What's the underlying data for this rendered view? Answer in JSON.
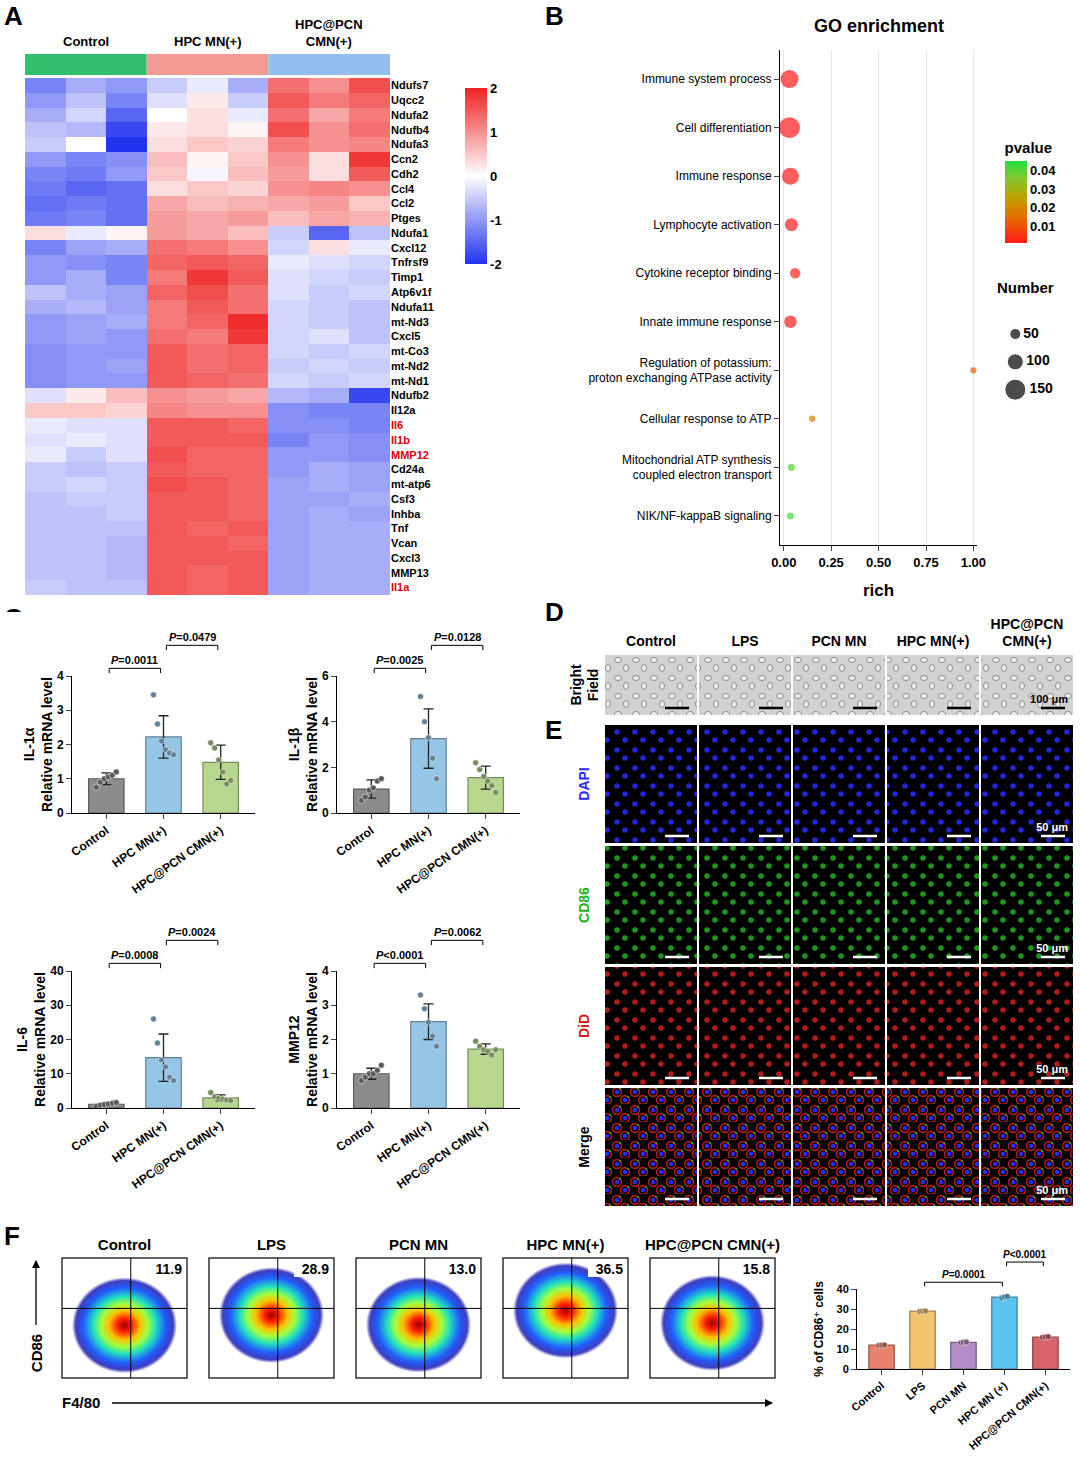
{
  "chart_data": [
    {
      "panel": "A",
      "type": "heatmap",
      "groups": [
        {
          "name": "Control",
          "color": "#2fbf6e"
        },
        {
          "name": "HPC MN(+)",
          "color": "#f29b94"
        },
        {
          "name": "HPC@PCN CMN(+)",
          "color": "#93bff0"
        }
      ],
      "replicates": 3,
      "rows": [
        "Ndufs7",
        "Uqcc2",
        "Ndufa2",
        "Ndufb4",
        "Ndufa3",
        "Ccn2",
        "Cdh2",
        "Ccl4",
        "Ccl2",
        "Ptges",
        "Ndufa1",
        "Cxcl12",
        "Tnfrsf9",
        "Timp1",
        "Atp6v1f",
        "Ndufa11",
        "mt-Nd3",
        "Cxcl5",
        "mt-Co3",
        "mt-Nd2",
        "mt-Nd1",
        "Ndufb2",
        "Il12a",
        "Il6",
        "Il1b",
        "MMP12",
        "Cd24a",
        "mt-atp6",
        "Csf3",
        "Inhba",
        "Tnf",
        "Vcan",
        "Cxcl3",
        "MMP13",
        "Il1a"
      ],
      "highlighted_rows": [
        "Il6",
        "Il1b",
        "MMP12",
        "Il1a"
      ],
      "values": [
        [
          -1.2,
          -0.8,
          -1.0,
          -0.5,
          -0.2,
          -0.8,
          1.3,
          1.0,
          1.6
        ],
        [
          -1.0,
          -0.6,
          -1.2,
          -0.3,
          0.2,
          -0.5,
          1.5,
          1.2,
          1.4
        ],
        [
          -0.8,
          -0.4,
          -1.5,
          0.0,
          0.3,
          -0.2,
          1.3,
          0.8,
          1.2
        ],
        [
          -0.6,
          -0.7,
          -1.8,
          0.2,
          0.3,
          0.1,
          1.6,
          1.0,
          1.3
        ],
        [
          -0.5,
          0.0,
          -2.0,
          0.3,
          0.5,
          0.4,
          1.2,
          1.0,
          1.1
        ],
        [
          -1.0,
          -1.2,
          -1.1,
          0.6,
          0.1,
          0.5,
          1.0,
          0.3,
          1.8
        ],
        [
          -1.2,
          -1.3,
          -1.0,
          0.5,
          -0.1,
          0.6,
          0.9,
          0.3,
          1.5
        ],
        [
          -1.3,
          -1.5,
          -1.4,
          0.3,
          0.5,
          0.4,
          1.0,
          1.1,
          1.0
        ],
        [
          -1.4,
          -1.3,
          -1.4,
          0.8,
          0.6,
          0.7,
          0.8,
          0.9,
          0.5
        ],
        [
          -1.3,
          -1.2,
          -1.4,
          0.9,
          0.8,
          0.9,
          0.6,
          0.8,
          0.7
        ],
        [
          0.3,
          -0.2,
          0.1,
          0.9,
          0.8,
          0.6,
          -0.5,
          -1.5,
          -0.6
        ],
        [
          -1.2,
          -0.9,
          -0.8,
          1.3,
          1.2,
          1.0,
          -0.4,
          0.3,
          -0.2
        ],
        [
          -1.0,
          -1.1,
          -1.2,
          1.4,
          1.5,
          1.4,
          -0.2,
          -0.3,
          -0.4
        ],
        [
          -1.0,
          -0.8,
          -1.2,
          1.2,
          1.8,
          1.5,
          -0.3,
          -0.4,
          -0.5
        ],
        [
          -0.6,
          -0.8,
          -0.9,
          1.4,
          1.6,
          1.3,
          -0.3,
          -0.5,
          -0.4
        ],
        [
          -0.8,
          -0.7,
          -0.9,
          1.2,
          1.5,
          1.3,
          -0.4,
          -0.5,
          -0.6
        ],
        [
          -1.0,
          -0.9,
          -0.8,
          1.2,
          1.4,
          1.9,
          -0.4,
          -0.5,
          -0.6
        ],
        [
          -1.0,
          -0.9,
          -1.0,
          1.3,
          1.2,
          1.8,
          -0.4,
          -0.3,
          -0.6
        ],
        [
          -1.1,
          -1.0,
          -1.0,
          1.5,
          1.3,
          1.4,
          -0.4,
          -0.5,
          -0.4
        ],
        [
          -1.1,
          -1.0,
          -0.9,
          1.5,
          1.3,
          1.4,
          -0.5,
          -0.4,
          -0.5
        ],
        [
          -1.1,
          -1.0,
          -1.0,
          1.5,
          1.4,
          1.3,
          -0.4,
          -0.5,
          -0.4
        ],
        [
          -0.3,
          0.2,
          0.6,
          1.0,
          0.9,
          0.8,
          -0.7,
          -0.8,
          -1.8
        ],
        [
          0.5,
          0.5,
          0.4,
          1.1,
          1.0,
          1.0,
          -1.1,
          -1.2,
          -1.2
        ],
        [
          -0.2,
          -0.3,
          -0.3,
          1.5,
          1.5,
          1.4,
          -1.1,
          -1.1,
          -1.2
        ],
        [
          -0.3,
          -0.2,
          -0.3,
          1.5,
          1.5,
          1.5,
          -1.2,
          -1.0,
          -1.1
        ],
        [
          -0.2,
          -0.5,
          -0.3,
          1.6,
          1.4,
          1.4,
          -1.0,
          -1.0,
          -1.1
        ],
        [
          -0.5,
          -0.6,
          -0.5,
          1.5,
          1.4,
          1.4,
          -1.0,
          -0.8,
          -0.9
        ],
        [
          -0.5,
          -0.4,
          -0.5,
          1.6,
          1.5,
          1.4,
          -0.9,
          -0.8,
          -0.9
        ],
        [
          -0.6,
          -0.5,
          -0.5,
          1.5,
          1.5,
          1.4,
          -0.9,
          -0.9,
          -0.8
        ],
        [
          -0.6,
          -0.6,
          -0.5,
          1.5,
          1.5,
          1.4,
          -0.9,
          -0.8,
          -0.9
        ],
        [
          -0.6,
          -0.6,
          -0.6,
          1.5,
          1.4,
          1.5,
          -0.9,
          -0.8,
          -0.8
        ],
        [
          -0.6,
          -0.6,
          -0.7,
          1.5,
          1.5,
          1.4,
          -0.9,
          -0.8,
          -0.8
        ],
        [
          -0.6,
          -0.6,
          -0.7,
          1.5,
          1.5,
          1.5,
          -0.9,
          -0.8,
          -0.8
        ],
        [
          -0.6,
          -0.6,
          -0.7,
          1.5,
          1.4,
          1.5,
          -0.9,
          -0.8,
          -0.8
        ],
        [
          -0.5,
          -0.6,
          -0.6,
          1.5,
          1.4,
          1.5,
          -0.9,
          -0.8,
          -0.8
        ]
      ],
      "colorbar": {
        "range": [
          -2,
          2
        ],
        "ticks": [
          2,
          1,
          0,
          -1,
          -2
        ]
      }
    },
    {
      "panel": "B",
      "type": "scatter",
      "title": "GO enrichment",
      "xlabel": "rich",
      "categories": [
        "Immune system process",
        "Cell differentiation",
        "Immune response",
        "Lymphocyte activation",
        "Cytokine receptor binding",
        "Innate immune response",
        "Regulation of potassium: proton exchanging ATPase activity",
        "Cellular response to ATP",
        "Mitochondrial ATP synthesis coupled electron transport",
        "NIK/NF-kappaB signaling"
      ],
      "x": [
        0.03,
        0.03,
        0.035,
        0.04,
        0.06,
        0.035,
        1.0,
        0.15,
        0.04,
        0.035
      ],
      "pvalue": [
        0.0005,
        0.0008,
        0.0006,
        0.001,
        0.003,
        0.0015,
        0.012,
        0.018,
        0.04,
        0.042
      ],
      "size": [
        120,
        150,
        110,
        70,
        45,
        65,
        2,
        5,
        12,
        10
      ],
      "xlim": [
        -0.02,
        1.02
      ],
      "xticks": [
        {
          "value": 0,
          "label": "0.00"
        },
        {
          "value": 0.25,
          "label": "0.25"
        },
        {
          "value": 0.5,
          "label": "0.50"
        },
        {
          "value": 0.75,
          "label": "0.75"
        },
        {
          "value": 1,
          "label": "1.00"
        }
      ],
      "grid": true,
      "colorbar": {
        "title": "pvalue",
        "range": [
          0.001,
          0.045
        ],
        "ticks": [
          0.01,
          0.02,
          0.03,
          0.04
        ]
      },
      "size_legend": {
        "title": "Number",
        "values": [
          50,
          100,
          150
        ]
      }
    },
    {
      "panel": "C",
      "type": "bar",
      "title": "IL-1α",
      "ylabel": "Relative mRNA level",
      "categories": [
        "Control",
        "HPC MN(+)",
        "HPC@PCN CMN(+)"
      ],
      "values": [
        1.0,
        2.22,
        1.48
      ],
      "errors": [
        0.17,
        0.62,
        0.5
      ],
      "points": [
        [
          0.75,
          0.9,
          1.0,
          1.05,
          1.1,
          1.2
        ],
        [
          3.45,
          2.6,
          2.1,
          1.85,
          1.75,
          1.7
        ],
        [
          2.05,
          1.9,
          1.55,
          1.2,
          0.85,
          0.95
        ]
      ],
      "colors": [
        "#8c8c8c",
        "#96c6e6",
        "#b7d68e"
      ],
      "ylim": [
        0,
        4
      ],
      "yticks": [
        0,
        1,
        2,
        3,
        4
      ],
      "comparisons": [
        {
          "from": 0,
          "to": 1,
          "label": "P=0.0011"
        },
        {
          "from": 1,
          "to": 2,
          "label": "P=0.0479"
        }
      ]
    },
    {
      "type": "bar",
      "title": "IL-1β",
      "ylabel": "Relative mRNA level",
      "categories": [
        "Control",
        "HPC MN(+)",
        "HPC@PCN CMN(+)"
      ],
      "values": [
        1.05,
        3.26,
        1.55
      ],
      "errors": [
        0.4,
        1.3,
        0.5
      ],
      "points": [
        [
          0.55,
          0.7,
          1.0,
          1.1,
          1.4,
          1.5
        ],
        [
          5.1,
          4.0,
          3.3,
          2.4,
          1.5
        ],
        [
          2.2,
          1.9,
          1.6,
          1.4,
          1.2,
          0.9
        ]
      ],
      "colors": [
        "#8c8c8c",
        "#96c6e6",
        "#b7d68e"
      ],
      "ylim": [
        0,
        6
      ],
      "yticks": [
        0,
        2,
        4,
        6
      ],
      "comparisons": [
        {
          "from": 0,
          "to": 1,
          "label": "P=0.0025"
        },
        {
          "from": 1,
          "to": 2,
          "label": "P=0.0128"
        }
      ]
    },
    {
      "type": "bar",
      "title": "IL-6",
      "ylabel": "Relative mRNA level",
      "categories": [
        "Control",
        "HPC MN(+)",
        "HPC@PCN CMN(+)"
      ],
      "values": [
        1.1,
        14.7,
        2.95
      ],
      "errors": [
        0.4,
        6.9,
        0.9
      ],
      "points": [
        [
          0.5,
          0.8,
          1.0,
          1.2,
          1.4,
          1.6
        ],
        [
          26,
          19,
          14,
          12,
          9,
          8
        ],
        [
          4.5,
          3.3,
          2.8,
          2.6,
          2.3,
          2.2
        ]
      ],
      "colors": [
        "#8c8c8c",
        "#96c6e6",
        "#b7d68e"
      ],
      "ylim": [
        0,
        40
      ],
      "yticks": [
        0,
        10,
        20,
        30,
        40
      ],
      "comparisons": [
        {
          "from": 0,
          "to": 1,
          "label": "P=0.0008"
        },
        {
          "from": 1,
          "to": 2,
          "label": "P=0.0024"
        }
      ]
    },
    {
      "type": "bar",
      "title": "MMP12",
      "ylabel": "Relative mRNA level",
      "categories": [
        "Control",
        "HPC MN(+)",
        "HPC@PCN CMN(+)"
      ],
      "values": [
        1.0,
        2.52,
        1.72
      ],
      "errors": [
        0.16,
        0.52,
        0.15
      ],
      "points": [
        [
          0.8,
          0.9,
          1.0,
          1.0,
          1.1,
          1.25
        ],
        [
          3.3,
          2.9,
          2.5,
          2.1,
          1.8
        ],
        [
          1.95,
          1.8,
          1.7,
          1.65,
          1.55,
          1.7
        ]
      ],
      "colors": [
        "#8c8c8c",
        "#96c6e6",
        "#b7d68e"
      ],
      "ylim": [
        0,
        4
      ],
      "yticks": [
        0,
        1,
        2,
        3,
        4
      ],
      "comparisons": [
        {
          "from": 0,
          "to": 1,
          "label": "P<0.0001"
        },
        {
          "from": 1,
          "to": 2,
          "label": "P=0.0062"
        }
      ]
    },
    {
      "type": "bar",
      "ylabel": "% of CD86⁺ cells",
      "categories": [
        "Control",
        "LPS",
        "PCN MN",
        "HPC MN (+)",
        "HPC@PCN CMN(+)"
      ],
      "values": [
        11.9,
        28.9,
        13.3,
        35.9,
        16.0
      ],
      "errors": [
        0.2,
        0.2,
        0.3,
        0.5,
        0.2
      ],
      "points": [
        [
          11.7,
          11.9,
          12.0
        ],
        [
          28.8,
          28.9,
          29.0
        ],
        [
          13.0,
          13.4,
          13.5
        ],
        [
          35.4,
          36.0,
          36.3
        ],
        [
          15.8,
          16.0,
          16.1
        ]
      ],
      "colors": [
        "#e8826a",
        "#f2c46d",
        "#b48cc8",
        "#5bc3f0",
        "#d9636b"
      ],
      "ylim": [
        0,
        40
      ],
      "yticks": [
        0,
        10,
        20,
        30,
        40
      ],
      "comparisons": [
        {
          "from": 1,
          "to": 3,
          "label": "P=0.0001"
        },
        {
          "from": 3,
          "to": 4,
          "label": "P<0.0001"
        }
      ]
    }
  ],
  "images": {
    "columns": [
      "Control",
      "LPS",
      "PCN MN",
      "HPC MN(+)",
      "HPC@PCN CMN(+)"
    ],
    "panels": [
      {
        "panel": "D",
        "rows": [
          {
            "label": "Bright Field",
            "color": "#000000"
          }
        ],
        "scale_bar": "100 μm"
      },
      {
        "panel": "E",
        "rows": [
          {
            "label": "DAPI",
            "color": "#2a2aff"
          },
          {
            "label": "CD86",
            "color": "#22b022"
          },
          {
            "label": "DiD",
            "color": "#d02020"
          },
          {
            "label": "Merge",
            "color": "#000000"
          }
        ],
        "scale_bar": "50 μm"
      }
    ]
  },
  "flow": {
    "panel": "F",
    "xlabel": "F4/80",
    "ylabel": "CD86",
    "titles": [
      "Control",
      "LPS",
      "PCN MN",
      "HPC MN(+)",
      "HPC@PCN CMN(+)"
    ],
    "values": [
      11.9,
      28.9,
      13.0,
      36.5,
      15.8
    ],
    "value_labels": [
      "11.9",
      "28.9",
      "13.0",
      "36.5",
      "15.8"
    ]
  }
}
